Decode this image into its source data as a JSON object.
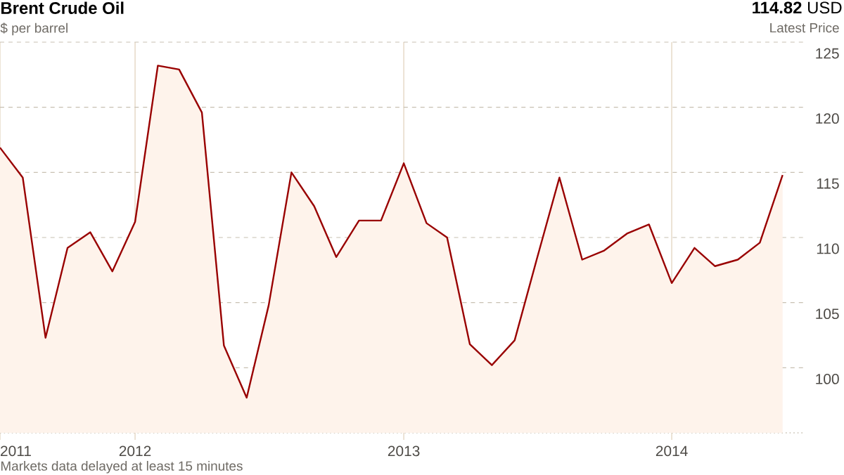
{
  "chart_data": {
    "type": "area",
    "title": "Brent Crude Oil",
    "subtitle": "$ per barrel",
    "annotations": [
      "**114.82** USD",
      "Latest Price",
      "Markets data delayed at least 15 minutes"
    ],
    "x": [
      "2011-07",
      "2011-08",
      "2011-09",
      "2011-10",
      "2011-11",
      "2011-12",
      "2012-01",
      "2012-02",
      "2012-03",
      "2012-04",
      "2012-05",
      "2012-06",
      "2012-07",
      "2012-08",
      "2012-09",
      "2012-10",
      "2012-11",
      "2012-12",
      "2013-01",
      "2013-02",
      "2013-03",
      "2013-04",
      "2013-05",
      "2013-06",
      "2013-07",
      "2013-08",
      "2013-09",
      "2013-10",
      "2013-11",
      "2013-12",
      "2014-01",
      "2014-02",
      "2014-03",
      "2014-04",
      "2014-05",
      "2014-06"
    ],
    "series": [
      {
        "color": "#990000",
        "values": [
          116.9,
          114.6,
          102.3,
          109.2,
          110.4,
          107.4,
          111.2,
          123.2,
          122.9,
          119.6,
          101.7,
          97.7,
          104.8,
          115.0,
          112.4,
          108.5,
          111.3,
          111.3,
          115.7,
          111.1,
          110.0,
          101.8,
          100.2,
          102.1,
          108.3,
          114.6,
          108.3,
          109.0,
          110.3,
          111.0,
          106.5,
          109.2,
          107.8,
          108.3,
          109.6,
          114.8
        ]
      }
    ],
    "xlim": [
      "2011-07",
      "2014-07"
    ],
    "xticks": [
      {
        "value": "2011-07",
        "label": "2011"
      },
      {
        "value": "2012-01",
        "label": "2012"
      },
      {
        "value": "2013-01",
        "label": "2013"
      },
      {
        "value": "2014-01",
        "label": "2014"
      }
    ],
    "ylim": [
      95,
      125
    ],
    "yticks": [
      100,
      105,
      110,
      115,
      120,
      125
    ],
    "grid": true,
    "line_style": "solid"
  }
}
